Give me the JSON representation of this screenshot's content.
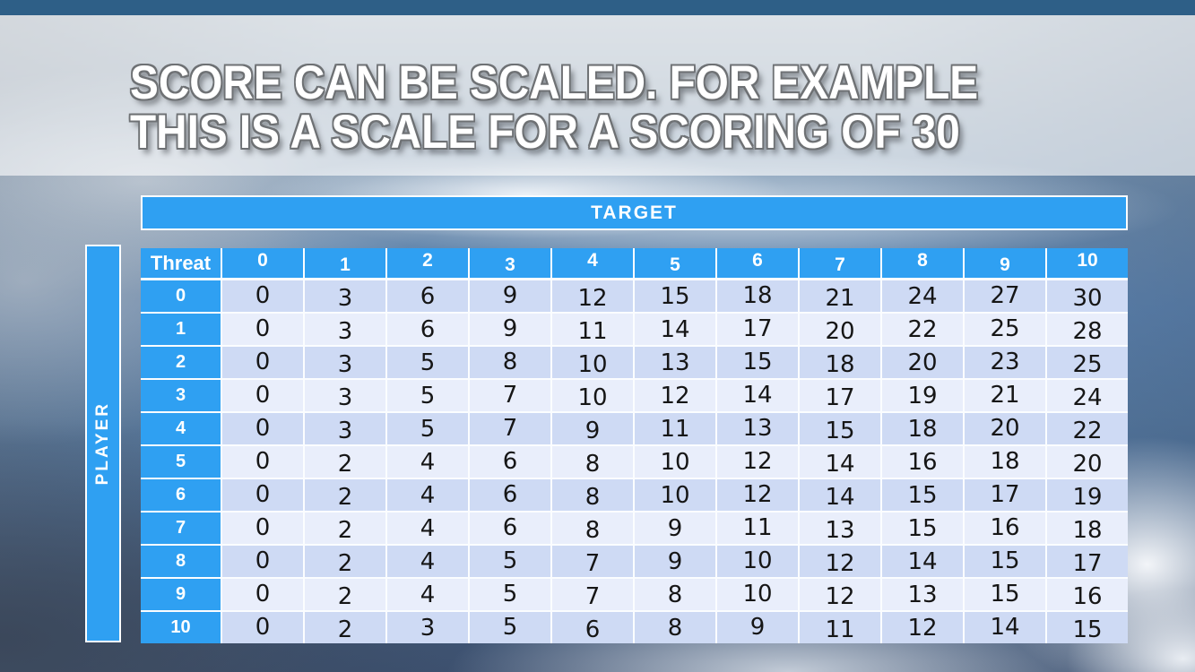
{
  "slide": {
    "title_line1": "SCORE CAN BE SCALED. FOR EXAMPLE",
    "title_line2": "THIS IS A SCALE FOR A SCORING OF 30"
  },
  "axes": {
    "top": "TARGET",
    "left": "PLAYER"
  },
  "chart_data": {
    "type": "table",
    "xlabel": "TARGET",
    "ylabel": "PLAYER",
    "col_header_label": "Threat",
    "columns": [
      "0",
      "1",
      "2",
      "3",
      "4",
      "5",
      "6",
      "7",
      "8",
      "9",
      "10"
    ],
    "rows": [
      {
        "label": "0",
        "values": [
          0,
          3,
          6,
          9,
          12,
          15,
          18,
          21,
          24,
          27,
          30
        ]
      },
      {
        "label": "1",
        "values": [
          0,
          3,
          6,
          9,
          11,
          14,
          17,
          20,
          22,
          25,
          28
        ]
      },
      {
        "label": "2",
        "values": [
          0,
          3,
          5,
          8,
          10,
          13,
          15,
          18,
          20,
          23,
          25
        ]
      },
      {
        "label": "3",
        "values": [
          0,
          3,
          5,
          7,
          10,
          12,
          14,
          17,
          19,
          21,
          24
        ]
      },
      {
        "label": "4",
        "values": [
          0,
          3,
          5,
          7,
          9,
          11,
          13,
          15,
          18,
          20,
          22
        ]
      },
      {
        "label": "5",
        "values": [
          0,
          2,
          4,
          6,
          8,
          10,
          12,
          14,
          16,
          18,
          20
        ]
      },
      {
        "label": "6",
        "values": [
          0,
          2,
          4,
          6,
          8,
          10,
          12,
          14,
          15,
          17,
          19
        ]
      },
      {
        "label": "7",
        "values": [
          0,
          2,
          4,
          6,
          8,
          9,
          11,
          13,
          15,
          16,
          18
        ]
      },
      {
        "label": "8",
        "values": [
          0,
          2,
          4,
          5,
          7,
          9,
          10,
          12,
          14,
          15,
          17
        ]
      },
      {
        "label": "9",
        "values": [
          0,
          2,
          4,
          5,
          7,
          8,
          10,
          12,
          13,
          15,
          16
        ]
      },
      {
        "label": "10",
        "values": [
          0,
          2,
          3,
          5,
          6,
          8,
          9,
          11,
          12,
          14,
          15
        ]
      }
    ]
  },
  "colors": {
    "header_blue": "#2fa0f2",
    "row_even": "#cedaf4",
    "row_odd": "#e9eefb",
    "top_bar": "#2e5f87",
    "title_text": "#ffffff",
    "title_outline": "#6e7174",
    "cell_text": "#161616"
  }
}
